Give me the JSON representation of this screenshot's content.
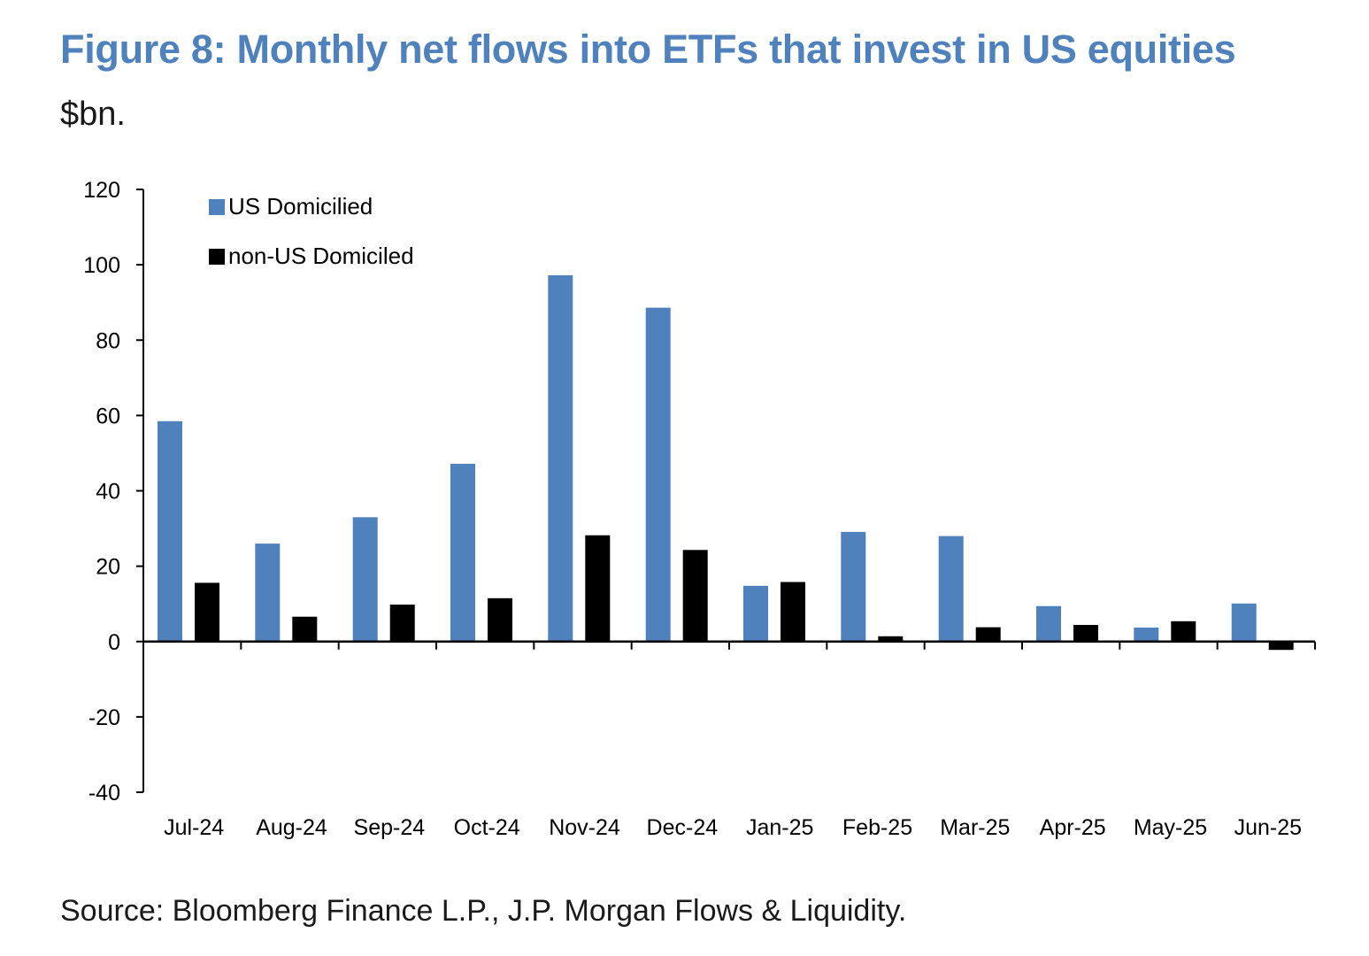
{
  "header": {
    "title": "Figure 8: Monthly net flows into ETFs that invest in US equities",
    "subtitle": "$bn."
  },
  "footer": {
    "source": "Source: Bloomberg Finance L.P., J.P. Morgan Flows & Liquidity."
  },
  "colors": {
    "title": "#4f81bd",
    "us_domiciled": "#4f81bd",
    "non_us_domiciled": "#000000"
  },
  "chart_data": {
    "type": "bar",
    "title": "Figure 8: Monthly net flows into ETFs that invest in US equities",
    "subtitle": "$bn.",
    "xlabel": "",
    "ylabel": "",
    "ylim": [
      -40,
      120
    ],
    "yticks": [
      -40,
      -20,
      0,
      20,
      40,
      60,
      80,
      100,
      120
    ],
    "grid": false,
    "legend_position": "top-left",
    "categories": [
      "Jul-24",
      "Aug-24",
      "Sep-24",
      "Oct-24",
      "Nov-24",
      "Dec-24",
      "Jan-25",
      "Feb-25",
      "Mar-25",
      "Apr-25",
      "May-25",
      "Jun-25"
    ],
    "series": [
      {
        "name": "US Domicilied",
        "color": "#4f81bd",
        "values": [
          58.5,
          26,
          33,
          47.2,
          97.2,
          88.6,
          14.8,
          29.1,
          28,
          9.4,
          3.7,
          10.1
        ]
      },
      {
        "name": "non-US Domiciled",
        "color": "#000000",
        "values": [
          15.6,
          6.6,
          9.8,
          11.5,
          28.2,
          24.3,
          15.8,
          1.4,
          3.8,
          4.4,
          5.4,
          -2.2
        ]
      }
    ]
  }
}
